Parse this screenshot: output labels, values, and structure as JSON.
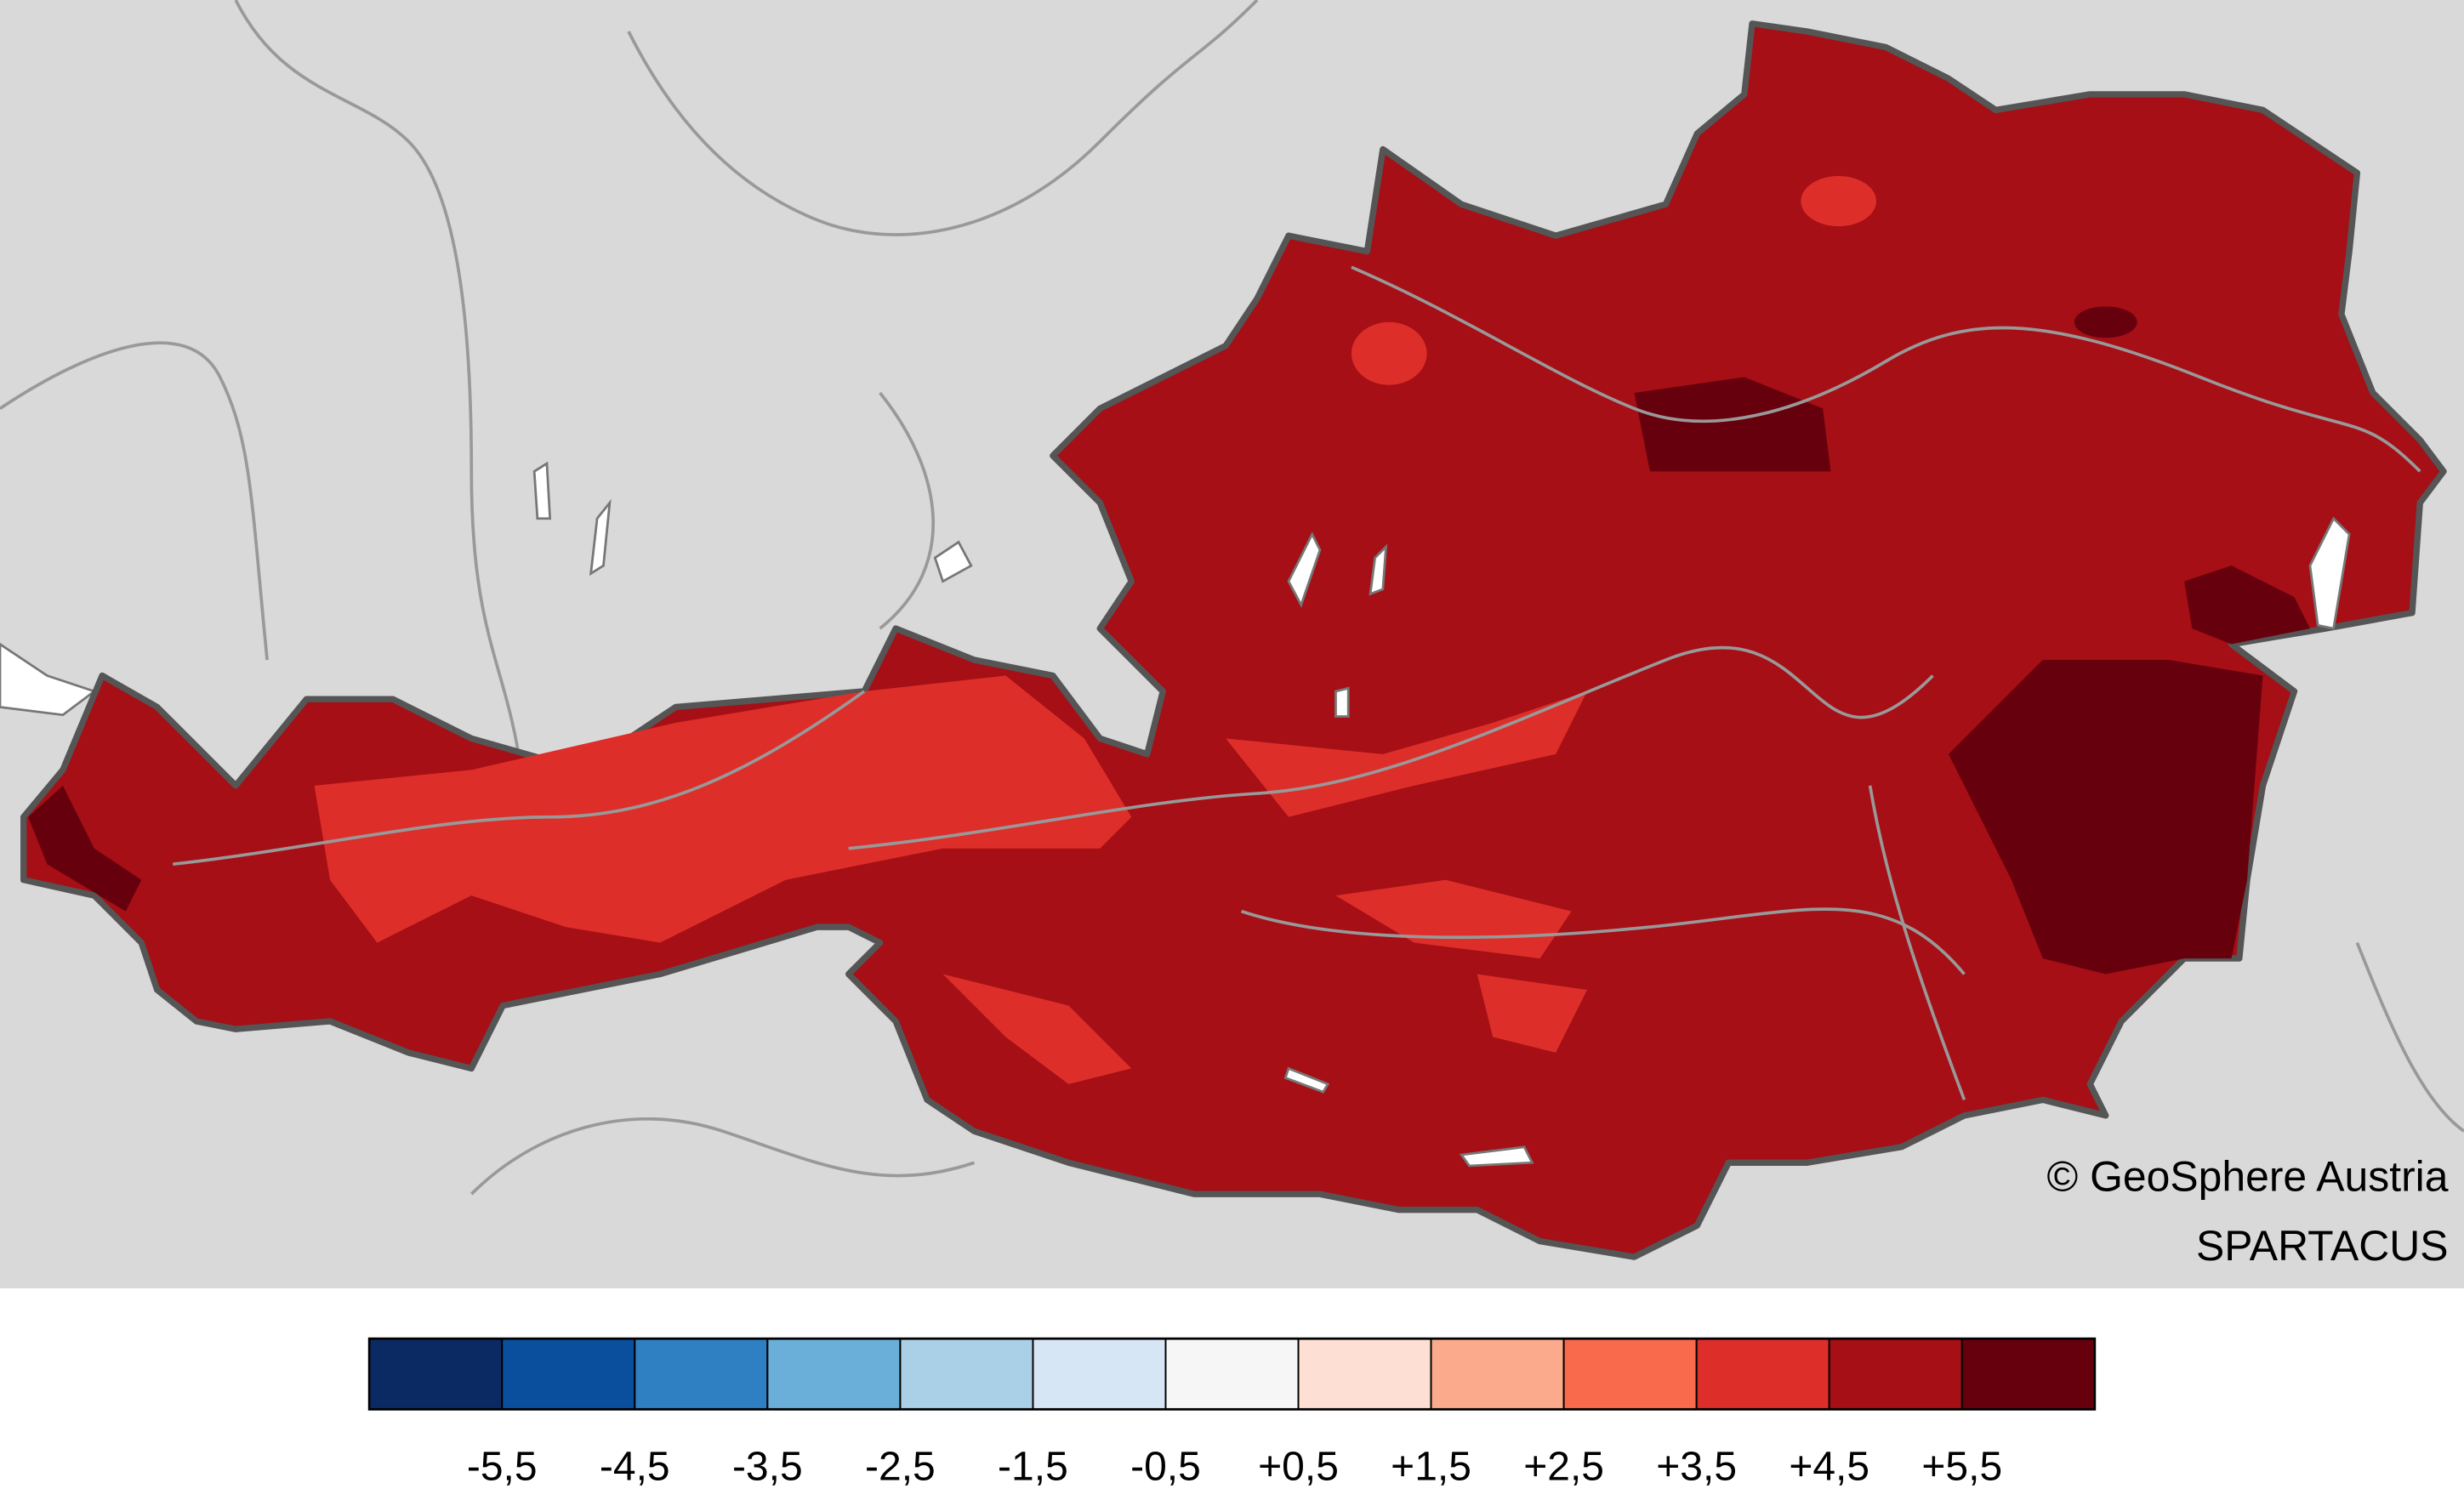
{
  "credits": [
    "© GeoSphere Austria",
    "SPARTACUS"
  ],
  "legend": {
    "range": [
      -6.5,
      6.5
    ],
    "colors": [
      "#0b2a63",
      "#0a4f9e",
      "#2f80c2",
      "#6aafd9",
      "#a9d0e6",
      "#d7e6f5",
      "#f6f6f6",
      "#fde0d3",
      "#fbab8b",
      "#f96a4c",
      "#dd2e2a",
      "#a50f15",
      "#67000d"
    ],
    "ticks": [
      {
        "value": -5.5,
        "label": "-5,5"
      },
      {
        "value": -4.5,
        "label": "-4,5"
      },
      {
        "value": -3.5,
        "label": "-3,5"
      },
      {
        "value": -2.5,
        "label": "-2,5"
      },
      {
        "value": -1.5,
        "label": "-1,5"
      },
      {
        "value": -0.5,
        "label": "-0,5"
      },
      {
        "value": 0.5,
        "label": "+0,5"
      },
      {
        "value": 1.5,
        "label": "+1,5"
      },
      {
        "value": 2.5,
        "label": "+2,5"
      },
      {
        "value": 3.5,
        "label": "+3,5"
      },
      {
        "value": 4.5,
        "label": "+4,5"
      },
      {
        "value": 5.5,
        "label": "+5,5"
      }
    ]
  }
}
